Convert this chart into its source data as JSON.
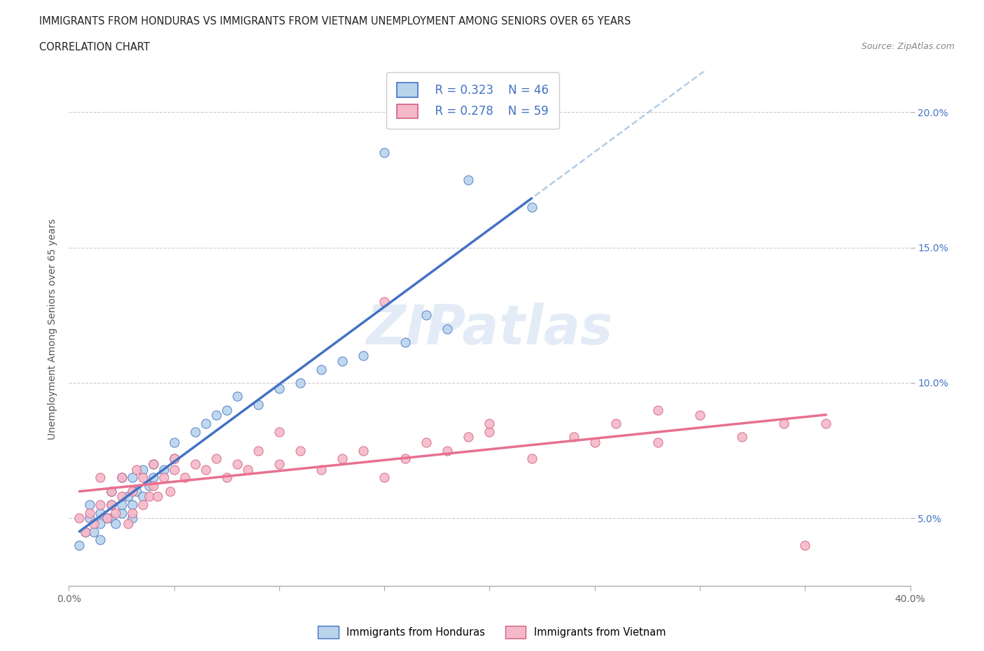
{
  "title_line1": "IMMIGRANTS FROM HONDURAS VS IMMIGRANTS FROM VIETNAM UNEMPLOYMENT AMONG SENIORS OVER 65 YEARS",
  "title_line2": "CORRELATION CHART",
  "source_text": "Source: ZipAtlas.com",
  "ylabel": "Unemployment Among Seniors over 65 years",
  "xlim": [
    0.0,
    0.4
  ],
  "ylim": [
    0.025,
    0.215
  ],
  "xticks": [
    0.0,
    0.05,
    0.1,
    0.15,
    0.2,
    0.25,
    0.3,
    0.35,
    0.4
  ],
  "yticks": [
    0.05,
    0.1,
    0.15,
    0.2
  ],
  "watermark": "ZIPatlas",
  "legend_r1": "R = 0.323",
  "legend_n1": "N = 46",
  "legend_r2": "R = 0.278",
  "legend_n2": "N = 59",
  "color_honduras": "#b8d4eb",
  "color_vietnam": "#f5b8c8",
  "color_line_honduras": "#4472c4",
  "color_line_vietnam": "#e87090",
  "label_honduras": "Immigrants from Honduras",
  "label_vietnam": "Immigrants from Vietnam",
  "honduras_x": [
    0.005,
    0.008,
    0.01,
    0.01,
    0.012,
    0.015,
    0.015,
    0.015,
    0.018,
    0.02,
    0.02,
    0.02,
    0.022,
    0.025,
    0.025,
    0.025,
    0.028,
    0.03,
    0.03,
    0.03,
    0.032,
    0.035,
    0.035,
    0.038,
    0.04,
    0.04,
    0.045,
    0.05,
    0.05,
    0.06,
    0.065,
    0.07,
    0.075,
    0.08,
    0.09,
    0.1,
    0.11,
    0.12,
    0.13,
    0.14,
    0.16,
    0.18,
    0.19,
    0.22,
    0.15,
    0.17
  ],
  "honduras_y": [
    0.04,
    0.045,
    0.05,
    0.055,
    0.045,
    0.042,
    0.048,
    0.052,
    0.05,
    0.05,
    0.055,
    0.06,
    0.048,
    0.052,
    0.055,
    0.065,
    0.058,
    0.05,
    0.055,
    0.065,
    0.06,
    0.058,
    0.068,
    0.062,
    0.065,
    0.07,
    0.068,
    0.072,
    0.078,
    0.082,
    0.085,
    0.088,
    0.09,
    0.095,
    0.092,
    0.098,
    0.1,
    0.105,
    0.108,
    0.11,
    0.115,
    0.12,
    0.175,
    0.165,
    0.185,
    0.125
  ],
  "vietnam_x": [
    0.005,
    0.008,
    0.01,
    0.012,
    0.015,
    0.015,
    0.018,
    0.02,
    0.02,
    0.022,
    0.025,
    0.025,
    0.028,
    0.03,
    0.03,
    0.032,
    0.035,
    0.035,
    0.038,
    0.04,
    0.04,
    0.042,
    0.045,
    0.048,
    0.05,
    0.05,
    0.055,
    0.06,
    0.065,
    0.07,
    0.075,
    0.08,
    0.085,
    0.09,
    0.1,
    0.11,
    0.12,
    0.13,
    0.14,
    0.15,
    0.16,
    0.17,
    0.18,
    0.19,
    0.2,
    0.22,
    0.24,
    0.26,
    0.28,
    0.3,
    0.32,
    0.34,
    0.36,
    0.1,
    0.15,
    0.2,
    0.25,
    0.28,
    0.35
  ],
  "vietnam_y": [
    0.05,
    0.045,
    0.052,
    0.048,
    0.055,
    0.065,
    0.05,
    0.055,
    0.06,
    0.052,
    0.058,
    0.065,
    0.048,
    0.052,
    0.06,
    0.068,
    0.055,
    0.065,
    0.058,
    0.062,
    0.07,
    0.058,
    0.065,
    0.06,
    0.068,
    0.072,
    0.065,
    0.07,
    0.068,
    0.072,
    0.065,
    0.07,
    0.068,
    0.075,
    0.07,
    0.075,
    0.068,
    0.072,
    0.075,
    0.065,
    0.072,
    0.078,
    0.075,
    0.08,
    0.082,
    0.072,
    0.08,
    0.085,
    0.078,
    0.088,
    0.08,
    0.085,
    0.085,
    0.082,
    0.13,
    0.085,
    0.078,
    0.09,
    0.04
  ]
}
